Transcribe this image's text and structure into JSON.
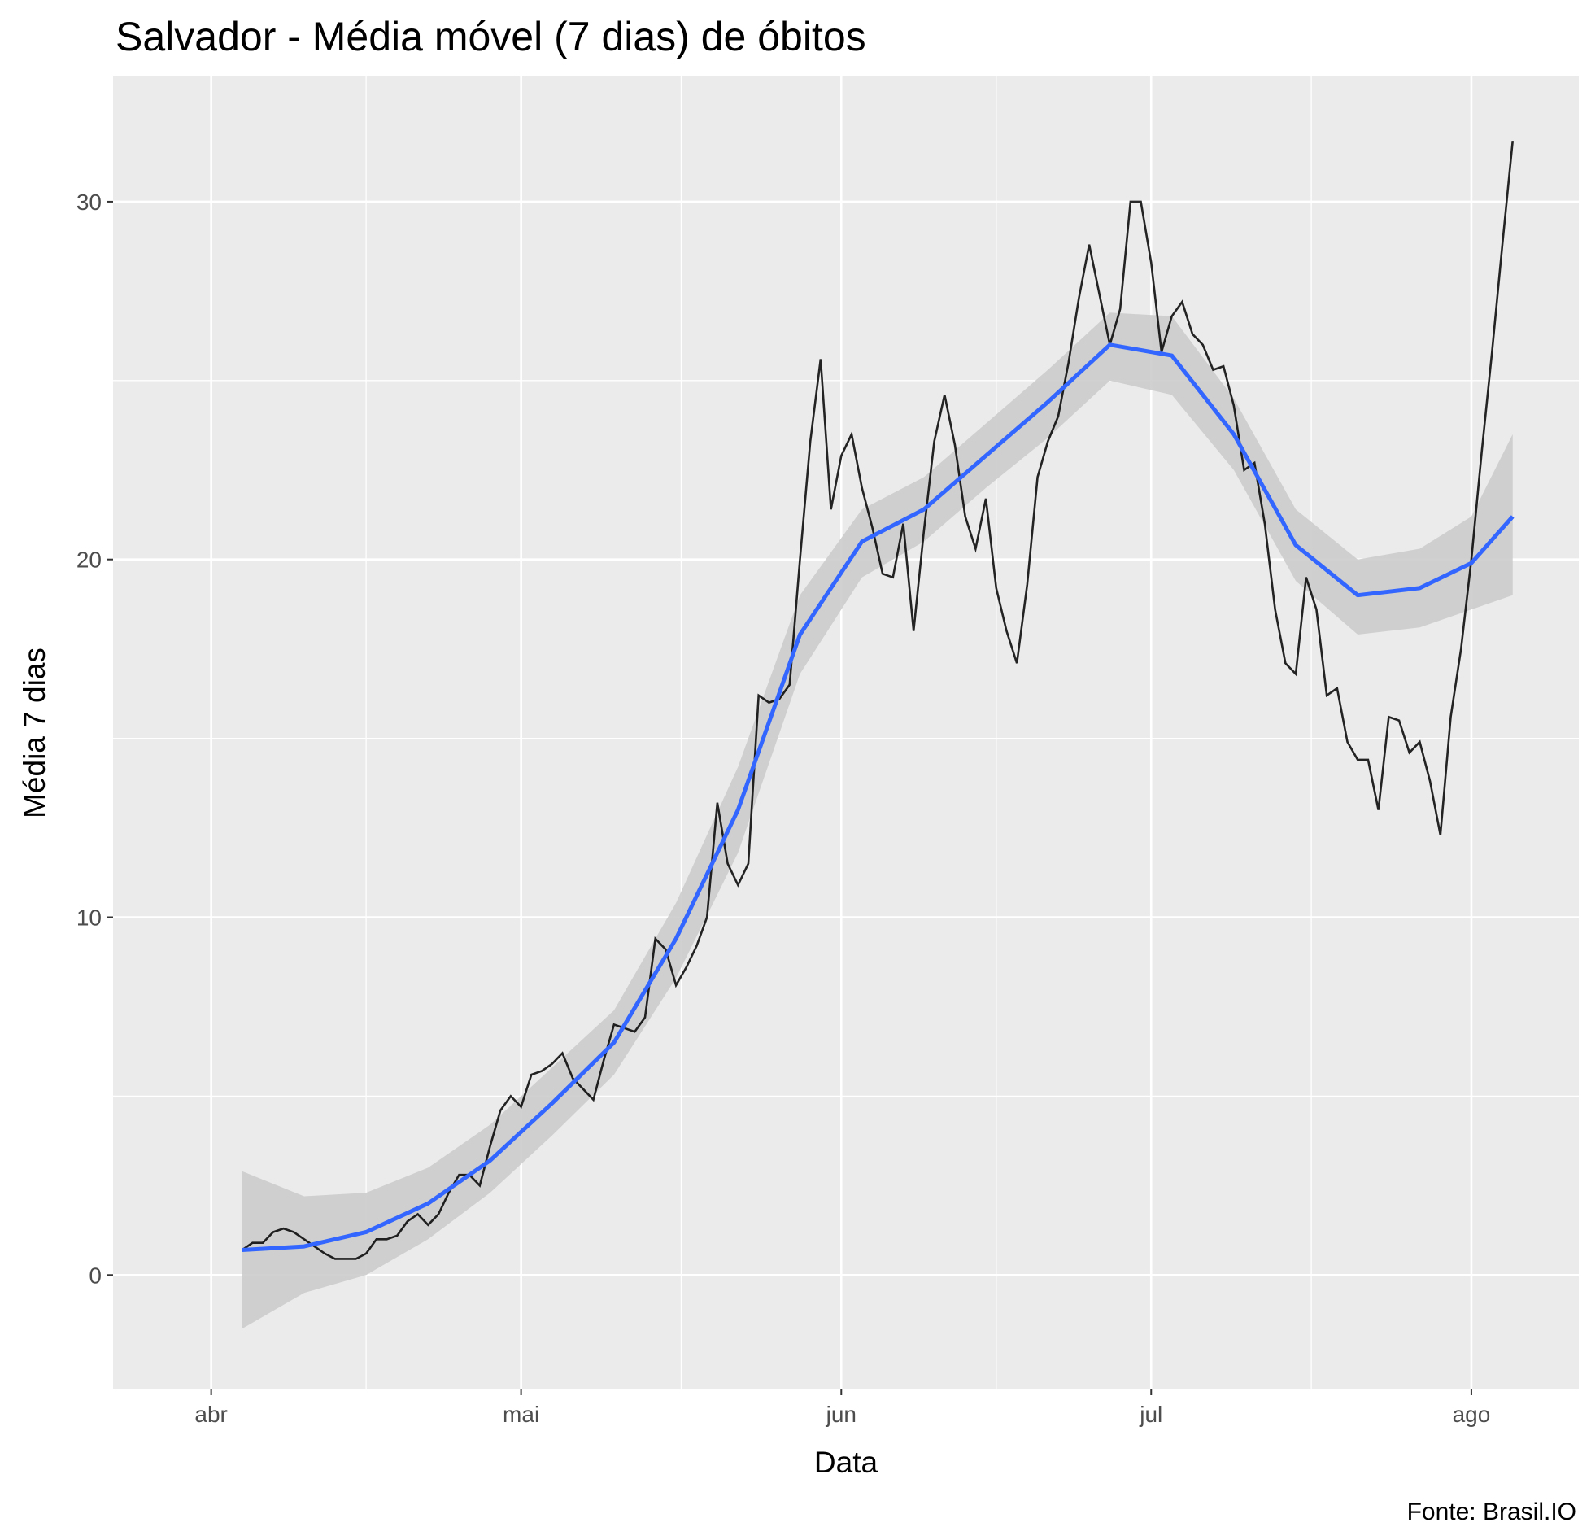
{
  "chart_data": {
    "type": "line",
    "title": "Salvador - Média móvel (7 dias) de óbitos",
    "x_label": "Data",
    "y_label": "Média 7 dias",
    "caption": "Fonte: Brasil.IO",
    "xlim": [
      -9.5,
      132.4
    ],
    "ylim": [
      -3.2,
      33.5
    ],
    "xticks": [
      {
        "value": 0,
        "label": "abr"
      },
      {
        "value": 30,
        "label": "mai"
      },
      {
        "value": 61,
        "label": "jun"
      },
      {
        "value": 91,
        "label": "jul"
      },
      {
        "value": 122,
        "label": "ago"
      }
    ],
    "yticks": [
      0,
      10,
      20,
      30
    ],
    "grid": true,
    "series": [
      {
        "color": "#000000",
        "x": [
          3,
          4,
          5,
          6,
          7,
          8,
          9,
          10,
          11,
          12,
          13,
          14,
          15,
          16,
          17,
          18,
          19,
          20,
          21,
          22,
          23,
          24,
          25,
          26,
          27,
          28,
          29,
          30,
          31,
          32,
          33,
          34,
          35,
          36,
          37,
          38,
          39,
          40,
          41,
          42,
          43,
          44,
          45,
          46,
          47,
          48,
          49,
          50,
          51,
          52,
          53,
          54,
          55,
          56,
          57,
          58,
          59,
          60,
          61,
          62,
          63,
          64,
          65,
          66,
          67,
          68,
          69,
          70,
          71,
          72,
          73,
          74,
          75,
          76,
          77,
          78,
          79,
          80,
          81,
          82,
          83,
          84,
          85,
          86,
          87,
          88,
          89,
          90,
          91,
          92,
          93,
          94,
          95,
          96,
          97,
          98,
          99,
          100,
          101,
          102,
          103,
          104,
          105,
          106,
          107,
          108,
          109,
          110,
          111,
          112,
          113,
          114,
          115,
          116,
          117,
          118,
          119,
          120,
          121,
          122,
          123,
          124,
          125,
          126
        ],
        "values": [
          0.7,
          0.9,
          0.9,
          1.2,
          1.3,
          1.2,
          1.0,
          0.8,
          0.6,
          0.45,
          0.45,
          0.45,
          0.6,
          1.0,
          1.0,
          1.1,
          1.5,
          1.7,
          1.4,
          1.7,
          2.3,
          2.8,
          2.8,
          2.5,
          3.6,
          4.6,
          5.0,
          4.7,
          5.6,
          5.7,
          5.9,
          6.2,
          5.5,
          5.2,
          4.9,
          6.0,
          7.0,
          6.9,
          6.8,
          7.2,
          9.4,
          9.1,
          8.1,
          8.6,
          9.2,
          10.0,
          13.2,
          11.5,
          10.9,
          11.5,
          16.2,
          16.0,
          16.1,
          16.5,
          20.0,
          23.3,
          25.6,
          21.4,
          22.9,
          23.5,
          22.0,
          20.9,
          19.6,
          19.5,
          21.0,
          18.0,
          20.8,
          23.3,
          24.6,
          23.2,
          21.2,
          20.3,
          21.7,
          19.2,
          18.0,
          17.1,
          19.3,
          22.3,
          23.3,
          24.0,
          25.5,
          27.3,
          28.8,
          27.4,
          26.0,
          27.0,
          30.0,
          30.0,
          28.3,
          25.8,
          26.8,
          27.2,
          26.3,
          26.0,
          25.3,
          25.4,
          24.3,
          22.5,
          22.7,
          21.0,
          18.6,
          17.1,
          16.8,
          19.5,
          18.6,
          16.2,
          16.4,
          14.9,
          14.4,
          14.4,
          13.0,
          15.6,
          15.5,
          14.6,
          14.9,
          13.8,
          12.3,
          15.6,
          17.5,
          20.0,
          23.0,
          25.8,
          28.8,
          31.7
        ]
      }
    ],
    "smooth": {
      "color": "#3366ff",
      "band_color": "#cccccc",
      "x": [
        3,
        9,
        15,
        21,
        27,
        33,
        39,
        45,
        51,
        57,
        63,
        69,
        75,
        81,
        87,
        93,
        99,
        105,
        111,
        117,
        122,
        126
      ],
      "values": [
        0.7,
        0.8,
        1.2,
        2.0,
        3.2,
        4.8,
        6.5,
        9.4,
        13.0,
        17.9,
        20.5,
        21.4,
        22.9,
        24.4,
        26.0,
        25.7,
        23.5,
        20.4,
        19.0,
        19.2,
        19.9,
        21.2
      ],
      "lower": [
        -1.5,
        -0.5,
        0.0,
        1.0,
        2.3,
        3.9,
        5.6,
        8.3,
        11.8,
        16.8,
        19.5,
        20.5,
        22.0,
        23.4,
        25.0,
        24.6,
        22.5,
        19.4,
        17.9,
        18.1,
        18.6,
        19.0
      ],
      "upper": [
        2.9,
        2.2,
        2.3,
        3.0,
        4.2,
        5.8,
        7.4,
        10.4,
        14.2,
        19.0,
        21.4,
        22.3,
        23.8,
        25.3,
        26.9,
        26.8,
        24.5,
        21.4,
        20.0,
        20.3,
        21.2,
        23.5
      ]
    }
  }
}
